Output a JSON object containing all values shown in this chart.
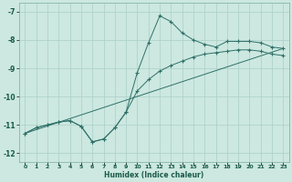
{
  "xlabel": "Humidex (Indice chaleur)",
  "background_color": "#cce8e0",
  "grid_color": "#aacfc8",
  "line_color": "#2e7068",
  "xlim": [
    -0.5,
    23.5
  ],
  "ylim": [
    -12.3,
    -6.7
  ],
  "yticks": [
    -12,
    -11,
    -10,
    -9,
    -8,
    -7
  ],
  "xticks": [
    0,
    1,
    2,
    3,
    4,
    5,
    6,
    7,
    8,
    9,
    10,
    11,
    12,
    13,
    14,
    15,
    16,
    17,
    18,
    19,
    20,
    21,
    22,
    23
  ],
  "line1_x": [
    0,
    1,
    2,
    3,
    4,
    5,
    6,
    7,
    8,
    9,
    10,
    11,
    12,
    13,
    14,
    15,
    16,
    17,
    18,
    19,
    20,
    21,
    22,
    23
  ],
  "line1_y": [
    -11.3,
    -11.1,
    -11.0,
    -10.9,
    -10.85,
    -11.05,
    -11.6,
    -11.5,
    -11.1,
    -10.55,
    -9.15,
    -8.1,
    -7.15,
    -7.35,
    -7.75,
    -8.0,
    -8.15,
    -8.25,
    -8.05,
    -8.05,
    -8.05,
    -8.1,
    -8.25,
    -8.3
  ],
  "line2_x": [
    0,
    1,
    2,
    3,
    4,
    5,
    6,
    7,
    8,
    9,
    10,
    11,
    12,
    13,
    14,
    15,
    16,
    17,
    18,
    19,
    20,
    21,
    22,
    23
  ],
  "line2_y": [
    -11.3,
    -11.1,
    -11.0,
    -10.9,
    -10.85,
    -11.05,
    -11.6,
    -11.5,
    -11.1,
    -10.55,
    -9.8,
    -9.4,
    -9.1,
    -8.9,
    -8.75,
    -8.6,
    -8.5,
    -8.45,
    -8.4,
    -8.35,
    -8.35,
    -8.4,
    -8.5,
    -8.55
  ],
  "line3_x": [
    0,
    23
  ],
  "line3_y": [
    -11.3,
    -8.3
  ]
}
